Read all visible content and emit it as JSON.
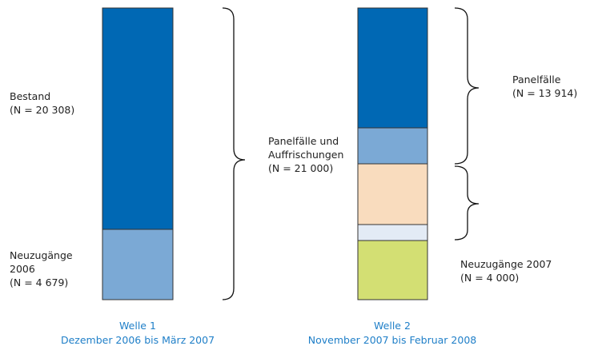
{
  "waves": [
    {
      "title": "Welle 1",
      "period": "Dezember 2006 bis März 2007",
      "labels": [
        {
          "lines": [
            "Bestand",
            "(N = 20 308)"
          ]
        },
        {
          "lines": [
            "Neuzugänge",
            "2006",
            "(N = 4 679)"
          ]
        }
      ]
    },
    {
      "title": "Welle 2",
      "period": "November 2007 bis Februar 2008",
      "labels": [
        {
          "lines": [
            "Panelfälle",
            "(N = 13 914)"
          ]
        },
        {
          "lines": [
            "Neuzugänge 2007",
            "(N = 4 000)"
          ]
        }
      ]
    }
  ],
  "middle_label": {
    "lines": [
      "Panelfälle und",
      "Auffrischungen",
      "(N = 21 000)"
    ]
  }
}
